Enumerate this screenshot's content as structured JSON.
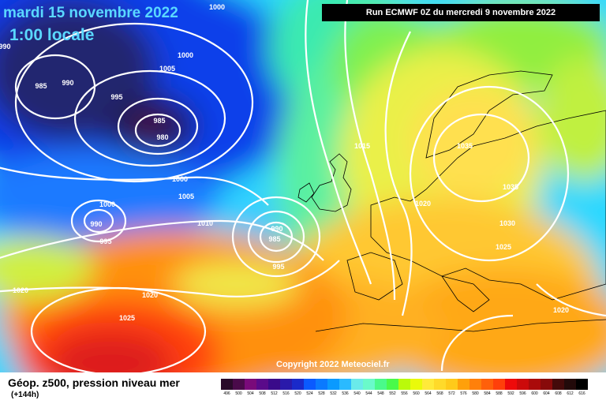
{
  "header": {
    "date": "mardi 15 novembre 2022",
    "time": "1:00 locale",
    "run": "Run ECMWF 0Z du mercredi 9 novembre 2022"
  },
  "copyright": "Copyright 2022 Meteociel.fr",
  "footer": {
    "title": "Géop. z500, pression niveau mer",
    "hours": "(+144h)"
  },
  "isobar_labels": [
    "1000",
    "990",
    "1000",
    "985",
    "990",
    "995",
    "985",
    "980",
    "1005",
    "1000",
    "1005",
    "1000",
    "990",
    "995",
    "1010",
    "990",
    "985",
    "995",
    "1015",
    "1020",
    "1035",
    "1035",
    "1030",
    "1025",
    "1020",
    "1020",
    "1025",
    "1020"
  ],
  "legend": {
    "colors": [
      "#2a0a2a",
      "#4a0a4a",
      "#7a0a7a",
      "#9a0a9a",
      "#5a0a8a",
      "#3a0a8a",
      "#2a1aaa",
      "#1a2aca",
      "#0a3aea",
      "#0a5aff",
      "#0a7aff",
      "#0a9aff",
      "#2abaff",
      "#4adaff",
      "#6aeaea",
      "#6afaca",
      "#4afa8a",
      "#4afa4a",
      "#8afa2a",
      "#bafa0a",
      "#eafa0a",
      "#ffea3a",
      "#ffda2a",
      "#ffca1a",
      "#ffba1a",
      "#ffa00a",
      "#ff800a",
      "#ff600a",
      "#ff400a",
      "#ff200a",
      "#ee0a0a",
      "#cc0a0a",
      "#aa0a0a",
      "#880a0a",
      "#660a0a",
      "#440a0a",
      "#220a0a",
      "#000000"
    ],
    "labels": [
      "496",
      "500",
      "504",
      "508",
      "512",
      "516",
      "520",
      "524",
      "528",
      "532",
      "536",
      "540",
      "544",
      "548",
      "552",
      "556",
      "560",
      "564",
      "568",
      "572",
      "576",
      "580",
      "584",
      "588",
      "592",
      "596",
      "600",
      "604",
      "608",
      "612",
      "616"
    ]
  }
}
